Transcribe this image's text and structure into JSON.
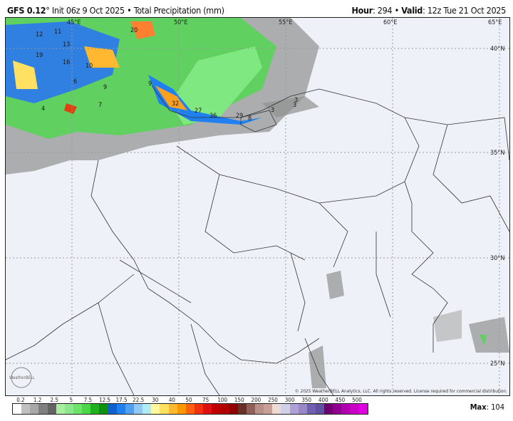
{
  "header": {
    "model": "GFS 0.12",
    "degree": "°",
    "init": "Init 06z 9 Oct 2025",
    "sep": "•",
    "product": "Total Precipitation (mm)",
    "hour_label": "Hour",
    "hour": "294",
    "valid_label": "Valid",
    "valid": "12z Tue 21 Oct 2025"
  },
  "map": {
    "lon_labels": [
      "45°E",
      "50°E",
      "55°E",
      "60°E",
      "65°E"
    ],
    "lat_labels": [
      "40°N",
      "35°N",
      "30°N",
      "25°N"
    ],
    "values": [
      "12",
      "11",
      "13",
      "19",
      "16",
      "10",
      "6",
      "9",
      "4",
      "7",
      "20",
      "9",
      "32",
      "27",
      "36",
      "29",
      "8",
      "3",
      "3",
      "3"
    ],
    "copyright": "© 2025 WeatherBELL Analytics, LLC. All rights reserved. License required for commercial distribution.",
    "logo": "WeatherBELL"
  },
  "legend": {
    "ticks": [
      "0.2",
      "1.2",
      "2.5",
      "5",
      "7.5",
      "12.5",
      "17.5",
      "22.5",
      "30",
      "40",
      "50",
      "75",
      "100",
      "150",
      "200",
      "250",
      "300",
      "350",
      "400",
      "450",
      "500"
    ],
    "colors": [
      "#ffffff",
      "#c0c0c0",
      "#a8a8a8",
      "#808080",
      "#646464",
      "#a8f0a0",
      "#8ce88c",
      "#6ce46c",
      "#48d848",
      "#20b020",
      "#109010",
      "#1060d0",
      "#2080f0",
      "#50a0f0",
      "#90c8f8",
      "#b0ecf8",
      "#fff8a0",
      "#ffe060",
      "#ffb830",
      "#ff9800",
      "#ff6010",
      "#f03010",
      "#e01010",
      "#c00000",
      "#b00000",
      "#900000",
      "#683028",
      "#906058",
      "#b89088",
      "#c8a098",
      "#eedcd4",
      "#d0d0e8",
      "#b0a0d8",
      "#9888c8",
      "#7060b0",
      "#6050a0",
      "#700070",
      "#900090",
      "#b000b0",
      "#c800c8",
      "#e000e0"
    ],
    "max_label": "Max",
    "max": "104"
  }
}
